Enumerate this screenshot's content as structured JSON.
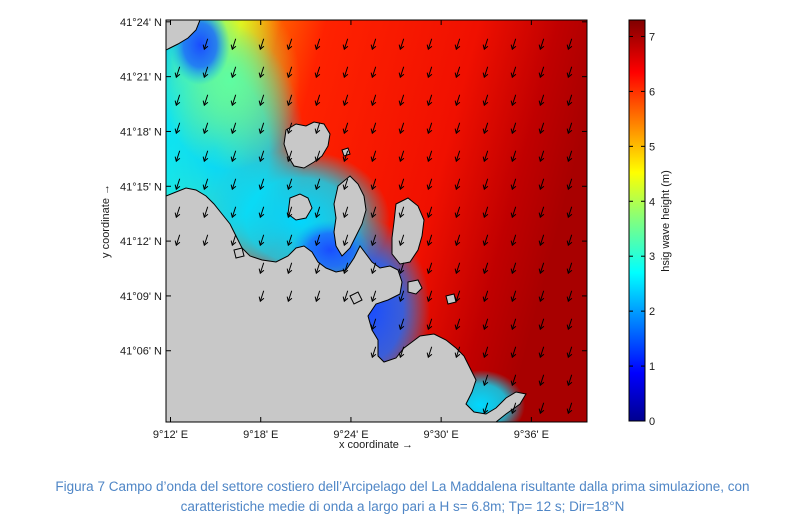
{
  "chart_data": {
    "type": "heatmap",
    "title": "",
    "xlabel": "x coordinate →",
    "ylabel": "y coordinate →",
    "x_ticks": [
      "9°12' E",
      "9°18' E",
      "9°24' E",
      "9°30' E",
      "9°36' E"
    ],
    "x_tick_values_min": [
      12,
      18,
      24,
      30,
      36
    ],
    "xlim_min": [
      11.7,
      39.7
    ],
    "y_ticks": [
      "41°24' N",
      "41°21' N",
      "41°18' N",
      "41°15' N",
      "41°12' N",
      "41°09' N",
      "41°06' N"
    ],
    "y_tick_values_min": [
      24,
      21,
      18,
      15,
      12,
      9,
      6
    ],
    "ylim_min": [
      2.1,
      24.1
    ],
    "colorbar": {
      "label": "hsig wave height (m)",
      "ticks": [
        "0",
        "1",
        "2",
        "3",
        "4",
        "5",
        "6",
        "7"
      ],
      "range": [
        0,
        7.3
      ]
    },
    "colormap": "jet",
    "offshore_wave_height_m": 6.8,
    "mean_wave_direction_from_deg": 18,
    "grid": false
  },
  "caption": {
    "line1": "Figura 7 Campo d’onda del settore costiero dell’Arcipelago del La Maddalena risultante dalla prima simulazione, con",
    "line2": "caratteristiche medie di onda a largo pari a H s= 6.8m; Tp= 12 s; Dir=18°N"
  },
  "colors": {
    "land": "#c8c8c8",
    "caption": "#4f86c6"
  }
}
